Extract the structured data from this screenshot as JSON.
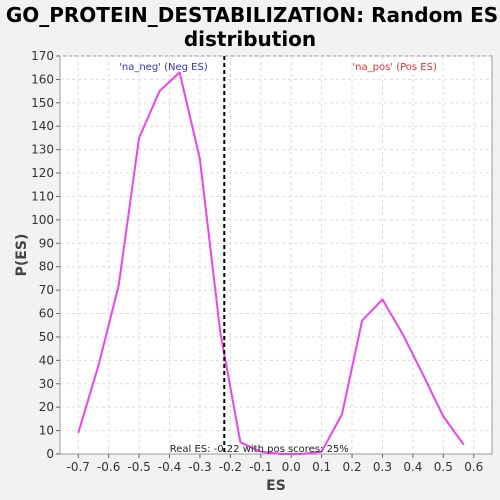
{
  "chart_data": {
    "type": "line",
    "title_line1": "GO_PROTEIN_DESTABILIZATION: Random ES",
    "title_line2": "distribution",
    "xlabel": "ES",
    "ylabel": "P(ES)",
    "xlim": [
      -0.76,
      0.66
    ],
    "ylim": [
      0,
      170
    ],
    "x_ticks": [
      -0.7,
      -0.6,
      -0.5,
      -0.4,
      -0.3,
      -0.2,
      -0.1,
      0.0,
      0.1,
      0.2,
      0.3,
      0.4,
      0.5,
      0.6
    ],
    "x_tick_labels": [
      "-0.7",
      "-0.6",
      "-0.5",
      "-0.4",
      "-0.3",
      "-0.2",
      "-0.1",
      "0.0",
      "0.1",
      "0.2",
      "0.3",
      "0.4",
      "0.5",
      "0.6"
    ],
    "y_ticks": [
      0,
      10,
      20,
      30,
      40,
      50,
      60,
      70,
      80,
      90,
      100,
      110,
      120,
      130,
      140,
      150,
      160,
      170
    ],
    "grid": true,
    "series": [
      {
        "color": "#ee44ee",
        "x": [
          -0.7,
          -0.633,
          -0.567,
          -0.5,
          -0.433,
          -0.367,
          -0.3,
          -0.233,
          -0.167,
          -0.1,
          -0.033,
          0.033,
          0.1,
          0.167,
          0.233,
          0.3,
          0.367,
          0.433,
          0.5,
          0.567
        ],
        "y": [
          9,
          38,
          72,
          135,
          155,
          163,
          126,
          52,
          5,
          1,
          0,
          0,
          1,
          17,
          57,
          66,
          51,
          34,
          16,
          4
        ]
      }
    ],
    "real_es_line": {
      "x": -0.22,
      "color": "#000000"
    },
    "annotations": {
      "neg_label": "'na_neg' (Neg ES)",
      "neg_color": "#3333cc",
      "pos_label": "'na_pos' (Pos ES)",
      "pos_color": "#dd3333",
      "bottom_text": "Real ES: -0.22 with pos scores: 25%"
    }
  }
}
